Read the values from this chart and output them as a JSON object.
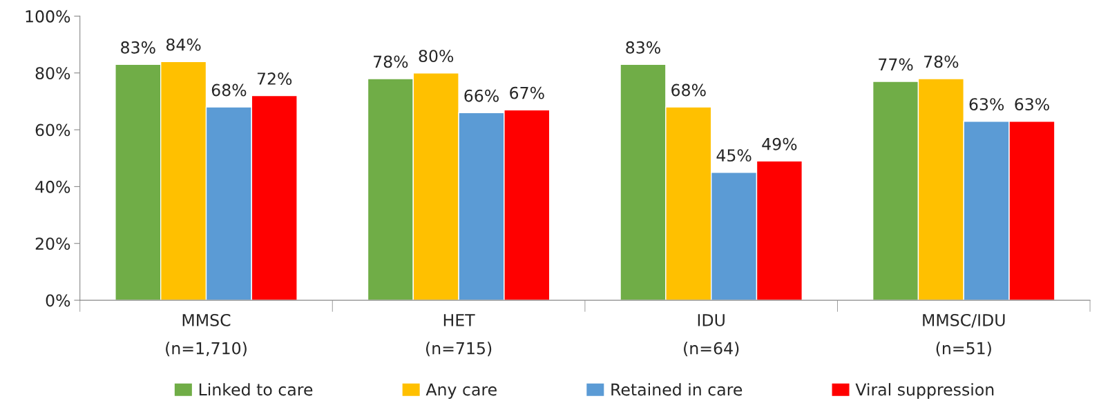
{
  "chart_data": {
    "type": "bar",
    "categories": [
      "MMSC\n(n=1,710)",
      "HET\n(n=715)",
      "IDU\n(n=64)",
      "MMSC/IDU\n(n=51)"
    ],
    "series": [
      {
        "name": "Linked to care",
        "color": "#70ad47",
        "values": [
          83,
          78,
          83,
          77
        ],
        "value_labels": [
          "83%",
          "78%",
          "83%",
          "77%"
        ]
      },
      {
        "name": "Any care",
        "color": "#ffc000",
        "values": [
          84,
          80,
          68,
          78
        ],
        "value_labels": [
          "84%",
          "80%",
          "68%",
          "78%"
        ]
      },
      {
        "name": "Retained in care",
        "color": "#5b9bd5",
        "values": [
          68,
          66,
          45,
          63
        ],
        "value_labels": [
          "68%",
          "66%",
          "45%",
          "63%"
        ]
      },
      {
        "name": "Viral suppression",
        "color": "#ff0000",
        "values": [
          72,
          67,
          49,
          63
        ],
        "value_labels": [
          "72%",
          "67%",
          "49%",
          "63%"
        ]
      }
    ],
    "ylim": [
      0,
      100
    ],
    "yticks": [
      {
        "value": 0,
        "label": "0%"
      },
      {
        "value": 20,
        "label": "20%"
      },
      {
        "value": 40,
        "label": "40%"
      },
      {
        "value": 60,
        "label": "60%"
      },
      {
        "value": 80,
        "label": "80%"
      },
      {
        "value": 100,
        "label": "100%"
      }
    ],
    "grid": false,
    "legend": "bottom"
  }
}
